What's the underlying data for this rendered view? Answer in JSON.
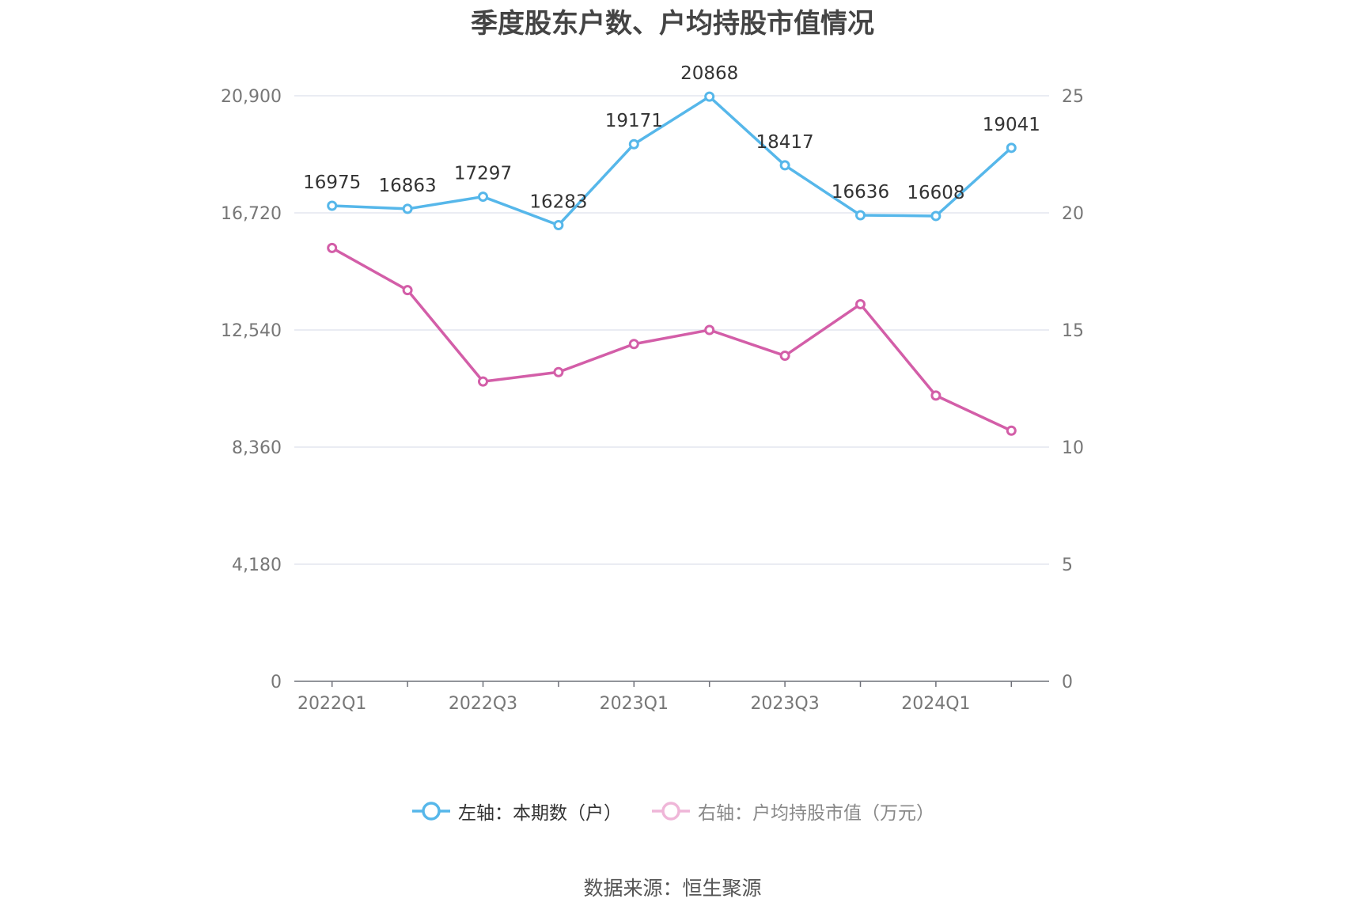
{
  "chart_data": {
    "type": "line",
    "title": "季度股东户数、户均持股市值情况",
    "categories": [
      "2022Q1",
      "2022Q2",
      "2022Q3",
      "2022Q4",
      "2023Q1",
      "2023Q2",
      "2023Q3",
      "2023Q4",
      "2024Q1",
      "2024Q2"
    ],
    "x_tick_labels": [
      "2022Q1",
      "2022Q3",
      "2023Q1",
      "2023Q3",
      "2024Q1"
    ],
    "series": [
      {
        "name": "左轴：本期数（户）",
        "axis": "left",
        "color": "#56b7ea",
        "values": [
          16975,
          16863,
          17297,
          16283,
          19171,
          20868,
          18417,
          16636,
          16608,
          19041
        ],
        "labels": [
          "16975",
          "16863",
          "17297",
          "16283",
          "19171",
          "20868",
          "18417",
          "16636",
          "16608",
          "19041"
        ]
      },
      {
        "name": "右轴：户均持股市值（万元）",
        "axis": "right",
        "color": "#d35ea8",
        "values": [
          18.5,
          16.7,
          12.8,
          13.2,
          14.4,
          15.0,
          13.9,
          16.1,
          12.2,
          10.7
        ]
      }
    ],
    "left_axis": {
      "ylim": [
        0,
        20900
      ],
      "ticks": [
        0,
        4180,
        8360,
        12540,
        16720,
        20900
      ],
      "tick_labels": [
        "0",
        "4,180",
        "8,360",
        "12,540",
        "16,720",
        "20,900"
      ]
    },
    "right_axis": {
      "ylim": [
        0,
        25
      ],
      "ticks": [
        0,
        5,
        10,
        15,
        20,
        25
      ],
      "tick_labels": [
        "0",
        "5",
        "10",
        "15",
        "20",
        "25"
      ]
    },
    "grid": true,
    "legend_position": "bottom-center"
  },
  "source": "数据来源：恒生聚源"
}
